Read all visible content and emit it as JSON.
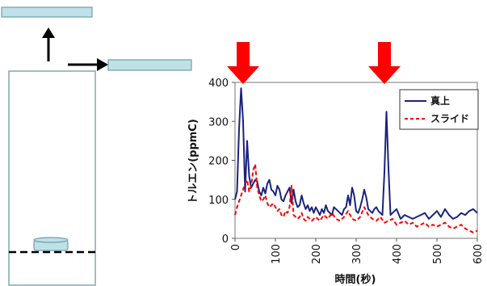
{
  "colors": {
    "panel_fill": "#bfe0e6",
    "panel_stroke": "#6f9fab",
    "chamber_stroke": "#7fa8b2",
    "arrow_red": "#ff0000",
    "series_navy": "#1a237e",
    "series_red": "#ff0000"
  },
  "chart_data": {
    "type": "line",
    "title": "",
    "xlabel": "時間(秒)",
    "ylabel": "トルエン(ppmC)",
    "xlim": [
      0,
      600
    ],
    "ylim": [
      0,
      400
    ],
    "xticks": [
      "0",
      "100",
      "200",
      "300",
      "400",
      "500",
      "600"
    ],
    "yticks": [
      "0",
      "100",
      "200",
      "300",
      "400"
    ],
    "grid": false,
    "legend_position": "top-right",
    "annotations": [
      {
        "type": "down-arrow",
        "x": 20
      },
      {
        "type": "down-arrow",
        "x": 370
      }
    ],
    "series": [
      {
        "name": "真上",
        "color": "#1a237e",
        "style": "solid",
        "x": [
          0,
          5,
          10,
          15,
          20,
          25,
          30,
          35,
          40,
          45,
          50,
          55,
          60,
          65,
          70,
          75,
          80,
          85,
          90,
          95,
          100,
          105,
          110,
          115,
          120,
          125,
          130,
          135,
          140,
          145,
          150,
          155,
          160,
          165,
          170,
          175,
          180,
          185,
          190,
          195,
          200,
          205,
          210,
          215,
          220,
          225,
          230,
          235,
          240,
          245,
          250,
          255,
          260,
          265,
          270,
          275,
          280,
          285,
          290,
          295,
          300,
          305,
          310,
          315,
          320,
          325,
          330,
          335,
          340,
          345,
          350,
          355,
          360,
          365,
          370,
          375,
          380,
          385,
          390,
          395,
          400,
          410,
          420,
          430,
          440,
          450,
          460,
          470,
          480,
          490,
          500,
          510,
          520,
          530,
          540,
          550,
          560,
          570,
          580,
          590,
          600
        ],
        "y": [
          100,
          120,
          280,
          385,
          300,
          120,
          250,
          160,
          130,
          140,
          150,
          145,
          120,
          110,
          130,
          115,
          140,
          150,
          125,
          120,
          110,
          135,
          125,
          100,
          95,
          110,
          120,
          130,
          90,
          125,
          95,
          80,
          85,
          110,
          90,
          75,
          85,
          70,
          80,
          65,
          80,
          70,
          60,
          75,
          65,
          85,
          70,
          65,
          60,
          80,
          75,
          70,
          65,
          60,
          75,
          80,
          110,
          85,
          130,
          110,
          70,
          65,
          80,
          100,
          125,
          105,
          75,
          70,
          65,
          75,
          80,
          70,
          65,
          60,
          170,
          325,
          180,
          60,
          65,
          70,
          75,
          50,
          60,
          55,
          50,
          55,
          60,
          65,
          50,
          60,
          70,
          55,
          75,
          60,
          50,
          55,
          65,
          60,
          70,
          75,
          65
        ]
      },
      {
        "name": "スライド",
        "color": "#ff0000",
        "style": "dashed",
        "x": [
          0,
          5,
          10,
          15,
          20,
          25,
          30,
          35,
          40,
          45,
          50,
          55,
          60,
          65,
          70,
          75,
          80,
          85,
          90,
          95,
          100,
          105,
          110,
          115,
          120,
          125,
          130,
          135,
          140,
          145,
          150,
          155,
          160,
          165,
          170,
          175,
          180,
          185,
          190,
          195,
          200,
          210,
          220,
          230,
          240,
          250,
          260,
          270,
          280,
          290,
          300,
          310,
          320,
          330,
          340,
          350,
          360,
          370,
          380,
          390,
          400,
          410,
          420,
          430,
          440,
          450,
          460,
          470,
          480,
          490,
          500,
          510,
          520,
          530,
          540,
          550,
          560,
          570,
          580,
          590,
          600
        ],
        "y": [
          60,
          80,
          95,
          110,
          125,
          140,
          150,
          120,
          135,
          175,
          190,
          130,
          110,
          95,
          100,
          110,
          90,
          80,
          85,
          90,
          80,
          70,
          75,
          60,
          55,
          70,
          65,
          80,
          135,
          60,
          55,
          50,
          55,
          65,
          50,
          45,
          55,
          50,
          45,
          50,
          55,
          45,
          60,
          50,
          65,
          50,
          45,
          55,
          70,
          50,
          45,
          55,
          80,
          60,
          50,
          45,
          55,
          40,
          45,
          50,
          35,
          40,
          45,
          35,
          40,
          30,
          35,
          40,
          30,
          35,
          30,
          35,
          40,
          30,
          25,
          30,
          35,
          25,
          20,
          15,
          20
        ]
      }
    ]
  }
}
